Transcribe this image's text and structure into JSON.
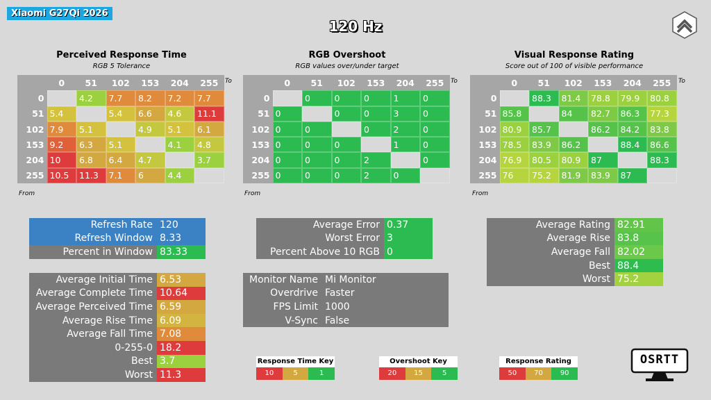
{
  "header": {
    "monitor": "Xiaomi G27Qi 2026",
    "refresh": "120 Hz"
  },
  "colors": {
    "red": "#de3c3c",
    "orange": "#e27a3a",
    "yellow": "#d4c23e",
    "lightgreen": "#9bd03f",
    "green": "#2bbb50",
    "grey": "#7a7a7a",
    "blue": "#3b82c4",
    "accent": "#1ea6e0"
  },
  "axis_labels": [
    "0",
    "51",
    "102",
    "153",
    "204",
    "255"
  ],
  "to_label": "To",
  "from_label": "From",
  "response_time": {
    "title": "Perceived Response Time",
    "subtitle": "RGB 5 Tolerance",
    "rows": [
      [
        "",
        "4.2",
        "7.7",
        "8.2",
        "7.2",
        "7.7"
      ],
      [
        "5.4",
        "",
        "5.4",
        "6.6",
        "4.6",
        "11.1"
      ],
      [
        "7.9",
        "5.1",
        "",
        "4.9",
        "5.1",
        "6.1"
      ],
      [
        "9.2",
        "6.3",
        "5.1",
        "",
        "4.1",
        "4.8"
      ],
      [
        "10",
        "6.8",
        "6.4",
        "4.7",
        "",
        "3.7"
      ],
      [
        "10.5",
        "11.3",
        "7.1",
        "6",
        "4.4",
        ""
      ]
    ]
  },
  "overshoot": {
    "title": "RGB Overshoot",
    "subtitle": "RGB values over/under target",
    "rows": [
      [
        "",
        "0",
        "0",
        "0",
        "1",
        "0"
      ],
      [
        "0",
        "",
        "0",
        "0",
        "3",
        "0"
      ],
      [
        "0",
        "0",
        "",
        "0",
        "2",
        "0"
      ],
      [
        "0",
        "0",
        "0",
        "",
        "1",
        "0"
      ],
      [
        "0",
        "0",
        "0",
        "2",
        "",
        "0"
      ],
      [
        "0",
        "0",
        "0",
        "2",
        "0",
        ""
      ]
    ]
  },
  "rating": {
    "title": "Visual Response Rating",
    "subtitle": "Score out of 100 of visible performance",
    "rows": [
      [
        "",
        "88.3",
        "81.4",
        "78.8",
        "79.9",
        "80.8"
      ],
      [
        "85.8",
        "",
        "84",
        "82.7",
        "86.3",
        "77.3"
      ],
      [
        "80.9",
        "85.7",
        "",
        "86.2",
        "84.2",
        "83.8"
      ],
      [
        "78.5",
        "83.9",
        "86.2",
        "",
        "88.4",
        "86.6"
      ],
      [
        "76.9",
        "80.5",
        "80.9",
        "87",
        "",
        "88.3"
      ],
      [
        "76",
        "75.2",
        "81.9",
        "83.9",
        "87",
        ""
      ]
    ]
  },
  "refresh_box": [
    {
      "label": "Refresh Rate",
      "value": "120"
    },
    {
      "label": "Refresh Window",
      "value": "8.33"
    },
    {
      "label": "Percent in Window",
      "value": "83.33"
    }
  ],
  "response_stats": [
    {
      "label": "Average Initial Time",
      "value": "6.53"
    },
    {
      "label": "Average Complete Time",
      "value": "10.64"
    },
    {
      "label": "Average Perceived Time",
      "value": "6.59"
    },
    {
      "label": "Average Rise Time",
      "value": "6.09"
    },
    {
      "label": "Average Fall Time",
      "value": "7.08"
    },
    {
      "label": "0-255-0",
      "value": "18.2"
    },
    {
      "label": "Best",
      "value": "3.7"
    },
    {
      "label": "Worst",
      "value": "11.3"
    }
  ],
  "error_stats": [
    {
      "label": "Average Error",
      "value": "0.37"
    },
    {
      "label": "Worst Error",
      "value": "3"
    },
    {
      "label": "Percent Above 10 RGB",
      "value": "0"
    }
  ],
  "monitor_info": [
    {
      "label": "Monitor Name",
      "value": "Mi Monitor"
    },
    {
      "label": "Overdrive",
      "value": "Faster"
    },
    {
      "label": "FPS Limit",
      "value": "1000"
    },
    {
      "label": "V-Sync",
      "value": "False"
    }
  ],
  "rating_stats": [
    {
      "label": "Average Rating",
      "value": "82.91"
    },
    {
      "label": "Average Rise",
      "value": "83.8"
    },
    {
      "label": "Average Fall",
      "value": "82.02"
    },
    {
      "label": "Best",
      "value": "88.4"
    },
    {
      "label": "Worst",
      "value": "75.2"
    }
  ],
  "keys": [
    {
      "title": "Response Time Key",
      "values": [
        "10",
        "5",
        "1"
      ]
    },
    {
      "title": "Overshoot Key",
      "values": [
        "20",
        "15",
        "5"
      ]
    },
    {
      "title": "Response Rating Key",
      "values": [
        "50",
        "70",
        "90"
      ]
    }
  ],
  "logo": "OSRTT",
  "icons": {
    "brand": "hexagon-logo-icon",
    "osrtt": "monitor-icon"
  }
}
